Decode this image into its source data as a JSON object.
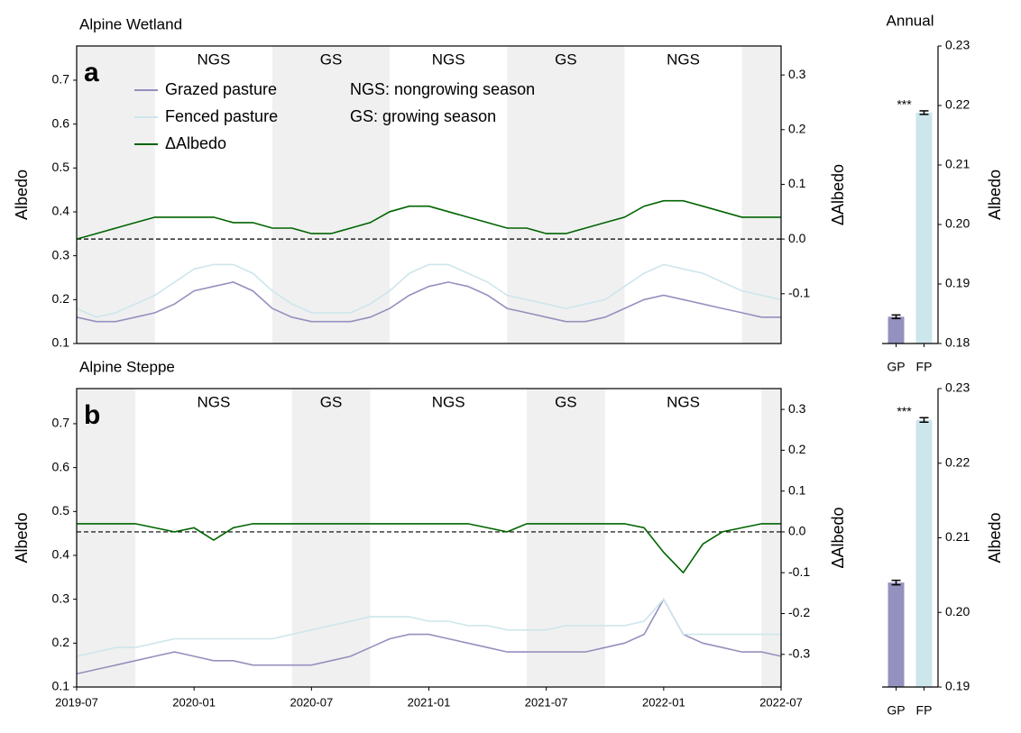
{
  "chart_data": [
    {
      "type": "line",
      "title": "Alpine Wetland",
      "panel_label": "a",
      "y_label": "Albedo",
      "y2_label": "ΔAlbedo",
      "x": [
        "2019-07",
        "2019-08",
        "2019-09",
        "2019-10",
        "2019-11",
        "2019-12",
        "2020-01",
        "2020-02",
        "2020-03",
        "2020-04",
        "2020-05",
        "2020-06",
        "2020-07",
        "2020-08",
        "2020-09",
        "2020-10",
        "2020-11",
        "2020-12",
        "2021-01",
        "2021-02",
        "2021-03",
        "2021-04",
        "2021-05",
        "2021-06",
        "2021-07",
        "2021-08",
        "2021-09",
        "2021-10",
        "2021-11",
        "2021-12",
        "2022-01",
        "2022-02",
        "2022-03",
        "2022-04",
        "2022-05",
        "2022-06",
        "2022-07"
      ],
      "xlim": [
        "2019-07",
        "2022-07"
      ],
      "ylim": [
        0.1,
        0.778
      ],
      "yticks": [
        0.1,
        0.2,
        0.3,
        0.4,
        0.5,
        0.6,
        0.7
      ],
      "y2lim": [
        -0.191,
        0.353
      ],
      "y2ticks": [
        -0.1,
        {
          "value": 0,
          "label": "0.0"
        },
        0.1,
        0.2,
        0.3
      ],
      "reference_line": {
        "value": 0,
        "axis": "y2"
      },
      "legend": "upper left",
      "notes": [
        "NGS: nongrowing season",
        "GS: growing season"
      ],
      "periods": [
        {
          "start": "2019-07",
          "end": "2019-11",
          "label": null,
          "shaded": true
        },
        {
          "start": "2019-11",
          "end": "2020-05",
          "label": "NGS",
          "shaded": false
        },
        {
          "start": "2020-05",
          "end": "2020-11",
          "label": "GS",
          "shaded": true
        },
        {
          "start": "2020-11",
          "end": "2021-05",
          "label": "NGS",
          "shaded": false
        },
        {
          "start": "2021-05",
          "end": "2021-11",
          "label": "GS",
          "shaded": true
        },
        {
          "start": "2021-11",
          "end": "2022-05",
          "label": "NGS",
          "shaded": false
        },
        {
          "start": "2022-05",
          "end": "2022-07",
          "label": null,
          "shaded": true
        }
      ],
      "series": [
        {
          "name": "Grazed pasture",
          "color": "#9491be",
          "values": [
            0.16,
            0.15,
            0.15,
            0.16,
            0.17,
            0.19,
            0.22,
            0.23,
            0.24,
            0.22,
            0.18,
            0.16,
            0.15,
            0.15,
            0.15,
            0.16,
            0.18,
            0.21,
            0.23,
            0.24,
            0.23,
            0.21,
            0.18,
            0.17,
            0.16,
            0.15,
            0.15,
            0.16,
            0.18,
            0.2,
            0.21,
            0.2,
            0.19,
            0.18,
            0.17,
            0.16,
            0.16
          ]
        },
        {
          "name": "Fenced pasture",
          "color": "#cde6ec",
          "values": [
            0.18,
            0.16,
            0.17,
            0.19,
            0.21,
            0.24,
            0.27,
            0.28,
            0.28,
            0.26,
            0.22,
            0.19,
            0.17,
            0.17,
            0.17,
            0.19,
            0.22,
            0.26,
            0.28,
            0.28,
            0.26,
            0.24,
            0.21,
            0.2,
            0.19,
            0.18,
            0.19,
            0.2,
            0.23,
            0.26,
            0.28,
            0.27,
            0.26,
            0.24,
            0.22,
            0.21,
            0.2
          ]
        },
        {
          "name": "ΔAlbedo",
          "color": "#006400",
          "axis": "y2",
          "values": [
            0.0,
            0.01,
            0.02,
            0.03,
            0.04,
            0.04,
            0.04,
            0.04,
            0.03,
            0.03,
            0.02,
            0.02,
            0.01,
            0.01,
            0.02,
            0.03,
            0.05,
            0.06,
            0.06,
            0.05,
            0.04,
            0.03,
            0.02,
            0.02,
            0.01,
            0.01,
            0.02,
            0.03,
            0.04,
            0.06,
            0.07,
            0.07,
            0.06,
            0.05,
            0.04,
            0.04,
            0.04
          ]
        }
      ]
    },
    {
      "type": "bar",
      "title": "Annual",
      "y_label": "Albedo",
      "categories": [
        "GP",
        "FP"
      ],
      "values": [
        0.1845,
        0.2188
      ],
      "errors": [
        0.0003,
        0.0003
      ],
      "colors": [
        "#9491be",
        "#cde6ec"
      ],
      "ylim": [
        0.18,
        0.23
      ],
      "yticks": [
        0.18,
        0.19,
        {
          "value": 0.2,
          "label": "0.20"
        },
        0.21,
        0.22,
        0.23
      ],
      "annotation": "***"
    },
    {
      "type": "line",
      "title": "Alpine Steppe",
      "panel_label": "b",
      "y_label": "Albedo",
      "y2_label": "ΔAlbedo",
      "x": [
        "2019-07",
        "2019-08",
        "2019-09",
        "2019-10",
        "2019-11",
        "2019-12",
        "2020-01",
        "2020-02",
        "2020-03",
        "2020-04",
        "2020-05",
        "2020-06",
        "2020-07",
        "2020-08",
        "2020-09",
        "2020-10",
        "2020-11",
        "2020-12",
        "2021-01",
        "2021-02",
        "2021-03",
        "2021-04",
        "2021-05",
        "2021-06",
        "2021-07",
        "2021-08",
        "2021-09",
        "2021-10",
        "2021-11",
        "2021-12",
        "2022-01",
        "2022-02",
        "2022-03",
        "2022-04",
        "2022-05",
        "2022-06",
        "2022-07"
      ],
      "xlim": [
        "2019-07",
        "2022-07"
      ],
      "xticks": [
        "2019-07",
        "2020-01",
        "2020-07",
        "2021-01",
        "2021-07",
        "2022-01",
        "2022-07"
      ],
      "ylim": [
        0.1,
        0.78
      ],
      "yticks": [
        0.1,
        0.2,
        0.3,
        0.4,
        0.5,
        0.6,
        0.7
      ],
      "y2lim": [
        -0.38,
        0.351
      ],
      "y2ticks": [
        -0.3,
        -0.2,
        -0.1,
        {
          "value": 0,
          "label": "0.0"
        },
        0.1,
        0.2,
        0.3
      ],
      "reference_line": {
        "value": 0,
        "axis": "y2"
      },
      "periods": [
        {
          "start": "2019-07",
          "end": "2019-10",
          "label": null,
          "shaded": true
        },
        {
          "start": "2019-10",
          "end": "2020-06",
          "label": "NGS",
          "shaded": false
        },
        {
          "start": "2020-06",
          "end": "2020-10",
          "label": "GS",
          "shaded": true
        },
        {
          "start": "2020-10",
          "end": "2021-06",
          "label": "NGS",
          "shaded": false
        },
        {
          "start": "2021-06",
          "end": "2021-10",
          "label": "GS",
          "shaded": true
        },
        {
          "start": "2021-10",
          "end": "2022-06",
          "label": "NGS",
          "shaded": false
        },
        {
          "start": "2022-06",
          "end": "2022-07",
          "label": null,
          "shaded": true
        }
      ],
      "series": [
        {
          "name": "Grazed pasture",
          "color": "#9491be",
          "values": [
            0.13,
            0.14,
            0.15,
            0.16,
            0.17,
            0.18,
            0.17,
            0.16,
            0.16,
            0.15,
            0.15,
            0.15,
            0.15,
            0.16,
            0.17,
            0.19,
            0.21,
            0.22,
            0.22,
            0.21,
            0.2,
            0.19,
            0.18,
            0.18,
            0.18,
            0.18,
            0.18,
            0.19,
            0.2,
            0.22,
            0.3,
            0.22,
            0.2,
            0.19,
            0.18,
            0.18,
            0.17
          ]
        },
        {
          "name": "Fenced pasture",
          "color": "#cde6ec",
          "values": [
            0.17,
            0.18,
            0.19,
            0.19,
            0.2,
            0.21,
            0.21,
            0.21,
            0.21,
            0.21,
            0.21,
            0.22,
            0.23,
            0.24,
            0.25,
            0.26,
            0.26,
            0.26,
            0.25,
            0.25,
            0.24,
            0.24,
            0.23,
            0.23,
            0.23,
            0.24,
            0.24,
            0.24,
            0.24,
            0.25,
            0.3,
            0.22,
            0.22,
            0.22,
            0.22,
            0.22,
            0.22
          ]
        },
        {
          "name": "ΔAlbedo",
          "color": "#006400",
          "axis": "y2",
          "values": [
            0.02,
            0.02,
            0.02,
            0.02,
            0.01,
            0.0,
            0.01,
            -0.02,
            0.01,
            0.02,
            0.02,
            0.02,
            0.02,
            0.02,
            0.02,
            0.02,
            0.02,
            0.02,
            0.02,
            0.02,
            0.02,
            0.01,
            0.0,
            0.02,
            0.02,
            0.02,
            0.02,
            0.02,
            0.02,
            0.01,
            -0.05,
            -0.1,
            -0.03,
            0.0,
            0.01,
            0.02,
            0.02
          ]
        }
      ]
    },
    {
      "type": "bar",
      "y_label": "Albedo",
      "categories": [
        "GP",
        "FP"
      ],
      "values": [
        0.204,
        0.2258
      ],
      "errors": [
        0.0003,
        0.0003
      ],
      "colors": [
        "#9491be",
        "#cde6ec"
      ],
      "ylim": [
        0.19,
        0.23
      ],
      "yticks": [
        0.19,
        {
          "value": 0.2,
          "label": "0.20"
        },
        0.21,
        0.22,
        0.23
      ],
      "annotation": "***"
    }
  ]
}
